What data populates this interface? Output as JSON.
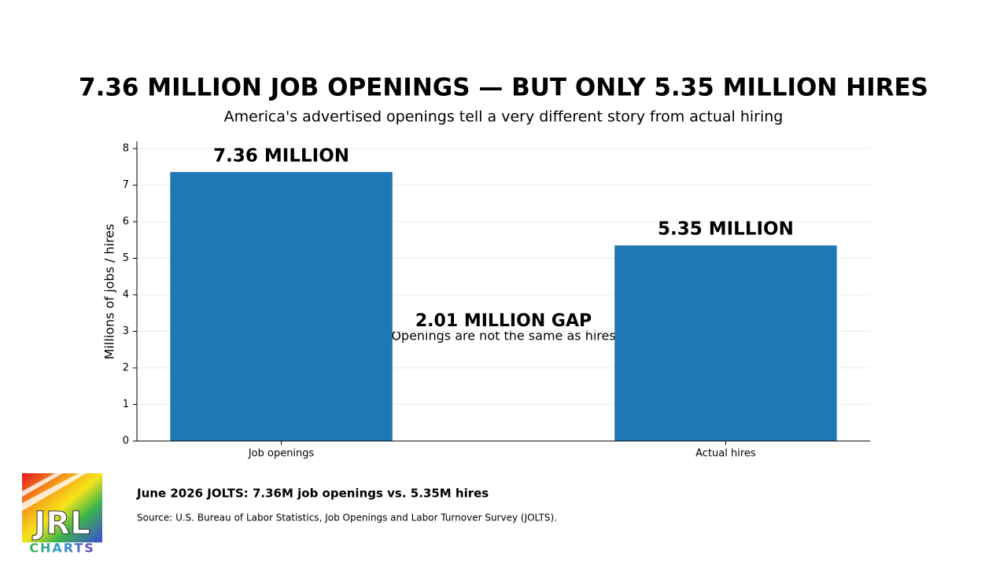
{
  "chart_data": {
    "type": "bar",
    "title": "7.36 MILLION JOB OPENINGS — BUT ONLY 5.35 MILLION HIRES",
    "subtitle": "America's advertised openings tell a very different story from actual hiring",
    "y_label": "Millions of jobs / hires",
    "categories": [
      "Job openings",
      "Actual hires"
    ],
    "values": [
      7.36,
      5.35
    ],
    "value_labels": [
      "7.36 MILLION",
      "5.35 MILLION"
    ],
    "color": "#1f77b4",
    "ylim": [
      0,
      8.2
    ],
    "yticks": [
      0,
      1,
      2,
      3,
      4,
      5,
      6,
      7,
      8
    ],
    "grid": true,
    "annotation": {
      "title": "2.01 MILLION GAP",
      "text": "Openings are not the same as hires"
    },
    "footer": {
      "headline": "June 2026 JOLTS: 7.36M job openings vs. 5.35M hires",
      "source": "Source: U.S. Bureau of Labor Statistics, Job Openings and Labor Turnover Survey (JOLTS)."
    },
    "logo": {
      "main": "JRL",
      "sub": "CHARTS"
    }
  }
}
